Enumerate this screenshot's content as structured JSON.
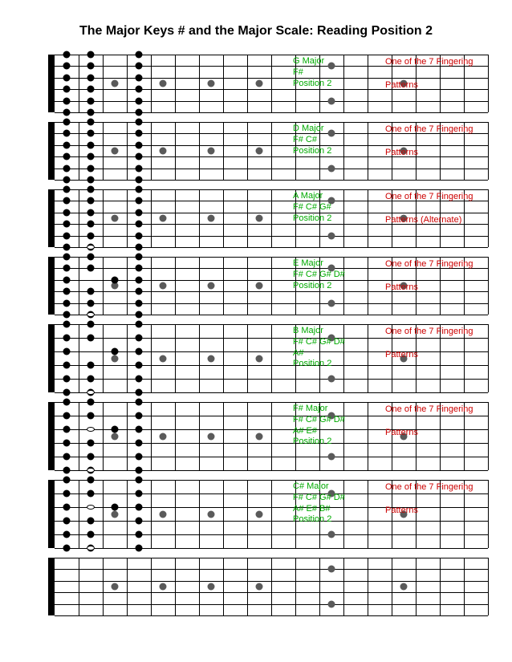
{
  "title": "The Major Keys # and the Major Scale: Reading Position 2",
  "layout": {
    "numStrings": 6,
    "numFrets": 18,
    "fretSpacing": 30,
    "nutX": 38,
    "paddingLeft": 30,
    "markerFrets": [
      3,
      5,
      7,
      9,
      12,
      15
    ],
    "doubleMarkerFret": 12,
    "greenTextX": 335,
    "redTextX": 450
  },
  "diagrams": [
    {
      "height": 72,
      "green": "G Major\nF#\nPosition 2",
      "red": "One of the 7 Fingering\n\nPatterns",
      "dots": [
        [
          1,
          1
        ],
        [
          1,
          2
        ],
        [
          1,
          4
        ],
        [
          2,
          1
        ],
        [
          2,
          2
        ],
        [
          2,
          4
        ],
        [
          3,
          1
        ],
        [
          3,
          2
        ],
        [
          3,
          4
        ],
        [
          4,
          1
        ],
        [
          4,
          2
        ],
        [
          4,
          4
        ],
        [
          5,
          1
        ],
        [
          5,
          2
        ],
        [
          5,
          4
        ],
        [
          6,
          1
        ],
        [
          6,
          2
        ],
        [
          6,
          4
        ]
      ],
      "openDots": []
    },
    {
      "height": 72,
      "green": "D Major\nF# C#\nPosition 2",
      "red": "One of the 7 Fingering\n\nPatterns",
      "dots": [
        [
          1,
          1
        ],
        [
          1,
          2
        ],
        [
          1,
          4
        ],
        [
          2,
          1
        ],
        [
          2,
          2
        ],
        [
          2,
          4
        ],
        [
          3,
          1
        ],
        [
          3,
          2
        ],
        [
          3,
          4
        ],
        [
          4,
          1
        ],
        [
          4,
          2
        ],
        [
          4,
          4
        ],
        [
          5,
          1
        ],
        [
          5,
          2
        ],
        [
          5,
          4
        ],
        [
          6,
          1
        ],
        [
          6,
          2
        ],
        [
          6,
          4
        ]
      ],
      "openDots": []
    },
    {
      "height": 72,
      "green": "A Major\nF# C# G#\nPosition 2",
      "red": "One of the 7 Fingering\n\nPatterns (Alternate)",
      "dots": [
        [
          1,
          1
        ],
        [
          1,
          2
        ],
        [
          1,
          4
        ],
        [
          2,
          1
        ],
        [
          2,
          2
        ],
        [
          2,
          4
        ],
        [
          3,
          1
        ],
        [
          3,
          2
        ],
        [
          3,
          4
        ],
        [
          4,
          1
        ],
        [
          4,
          2
        ],
        [
          4,
          4
        ],
        [
          5,
          1
        ],
        [
          5,
          2
        ],
        [
          5,
          4
        ],
        [
          6,
          1
        ],
        [
          6,
          2
        ],
        [
          6,
          4
        ]
      ],
      "openDots": [
        [
          6,
          2
        ]
      ]
    },
    {
      "height": 72,
      "green": "E Major\nF# C# G# D#\nPosition 2",
      "red": "One of the 7 Fingering\n\nPatterns",
      "dots": [
        [
          1,
          1
        ],
        [
          1,
          2
        ],
        [
          1,
          4
        ],
        [
          2,
          1
        ],
        [
          2,
          2
        ],
        [
          2,
          4
        ],
        [
          3,
          1
        ],
        [
          3,
          3
        ],
        [
          3,
          4
        ],
        [
          4,
          1
        ],
        [
          4,
          2
        ],
        [
          4,
          4
        ],
        [
          5,
          1
        ],
        [
          5,
          2
        ],
        [
          5,
          4
        ],
        [
          6,
          1
        ],
        [
          6,
          2
        ],
        [
          6,
          4
        ]
      ],
      "openDots": [
        [
          6,
          2
        ]
      ]
    },
    {
      "height": 85,
      "green": "B Major\nF# C# G# D#\nA#\nPosition 2",
      "red": "One of the 7 Fingering\n\nPatterns",
      "dots": [
        [
          1,
          1
        ],
        [
          1,
          2
        ],
        [
          1,
          4
        ],
        [
          2,
          1
        ],
        [
          2,
          2
        ],
        [
          2,
          4
        ],
        [
          3,
          1
        ],
        [
          3,
          3
        ],
        [
          3,
          4
        ],
        [
          4,
          1
        ],
        [
          4,
          2
        ],
        [
          4,
          4
        ],
        [
          5,
          1
        ],
        [
          5,
          2
        ],
        [
          5,
          4
        ],
        [
          6,
          1
        ],
        [
          6,
          2
        ],
        [
          6,
          4
        ]
      ],
      "openDots": [
        [
          6,
          2
        ]
      ]
    },
    {
      "height": 85,
      "green": "F# Major\nF# C# G# D#\nA# E#\nPosition 2",
      "red": "One of the 7 Fingering\n\nPatterns",
      "dots": [
        [
          1,
          1
        ],
        [
          1,
          2
        ],
        [
          1,
          4
        ],
        [
          2,
          1
        ],
        [
          2,
          2
        ],
        [
          2,
          4
        ],
        [
          3,
          1
        ],
        [
          3,
          3
        ],
        [
          3,
          4
        ],
        [
          4,
          1
        ],
        [
          4,
          2
        ],
        [
          4,
          4
        ],
        [
          5,
          1
        ],
        [
          5,
          2
        ],
        [
          5,
          4
        ],
        [
          6,
          1
        ],
        [
          6,
          2
        ],
        [
          6,
          4
        ]
      ],
      "openDots": [
        [
          3,
          2
        ],
        [
          6,
          2
        ]
      ]
    },
    {
      "height": 85,
      "green": "C# Major\nF# C# G# D#\nA# E# B#\nPosition 2",
      "red": "One of the 7 Fingering\n\nPatterns",
      "dots": [
        [
          1,
          1
        ],
        [
          1,
          2
        ],
        [
          1,
          4
        ],
        [
          2,
          1
        ],
        [
          2,
          2
        ],
        [
          2,
          4
        ],
        [
          3,
          1
        ],
        [
          3,
          3
        ],
        [
          3,
          4
        ],
        [
          4,
          1
        ],
        [
          4,
          2
        ],
        [
          4,
          4
        ],
        [
          5,
          1
        ],
        [
          5,
          2
        ],
        [
          5,
          4
        ],
        [
          6,
          1
        ],
        [
          6,
          2
        ],
        [
          6,
          4
        ]
      ],
      "openDots": [
        [
          3,
          2
        ],
        [
          6,
          2
        ]
      ]
    },
    {
      "height": 72,
      "green": "",
      "red": "",
      "dots": [],
      "openDots": []
    }
  ]
}
